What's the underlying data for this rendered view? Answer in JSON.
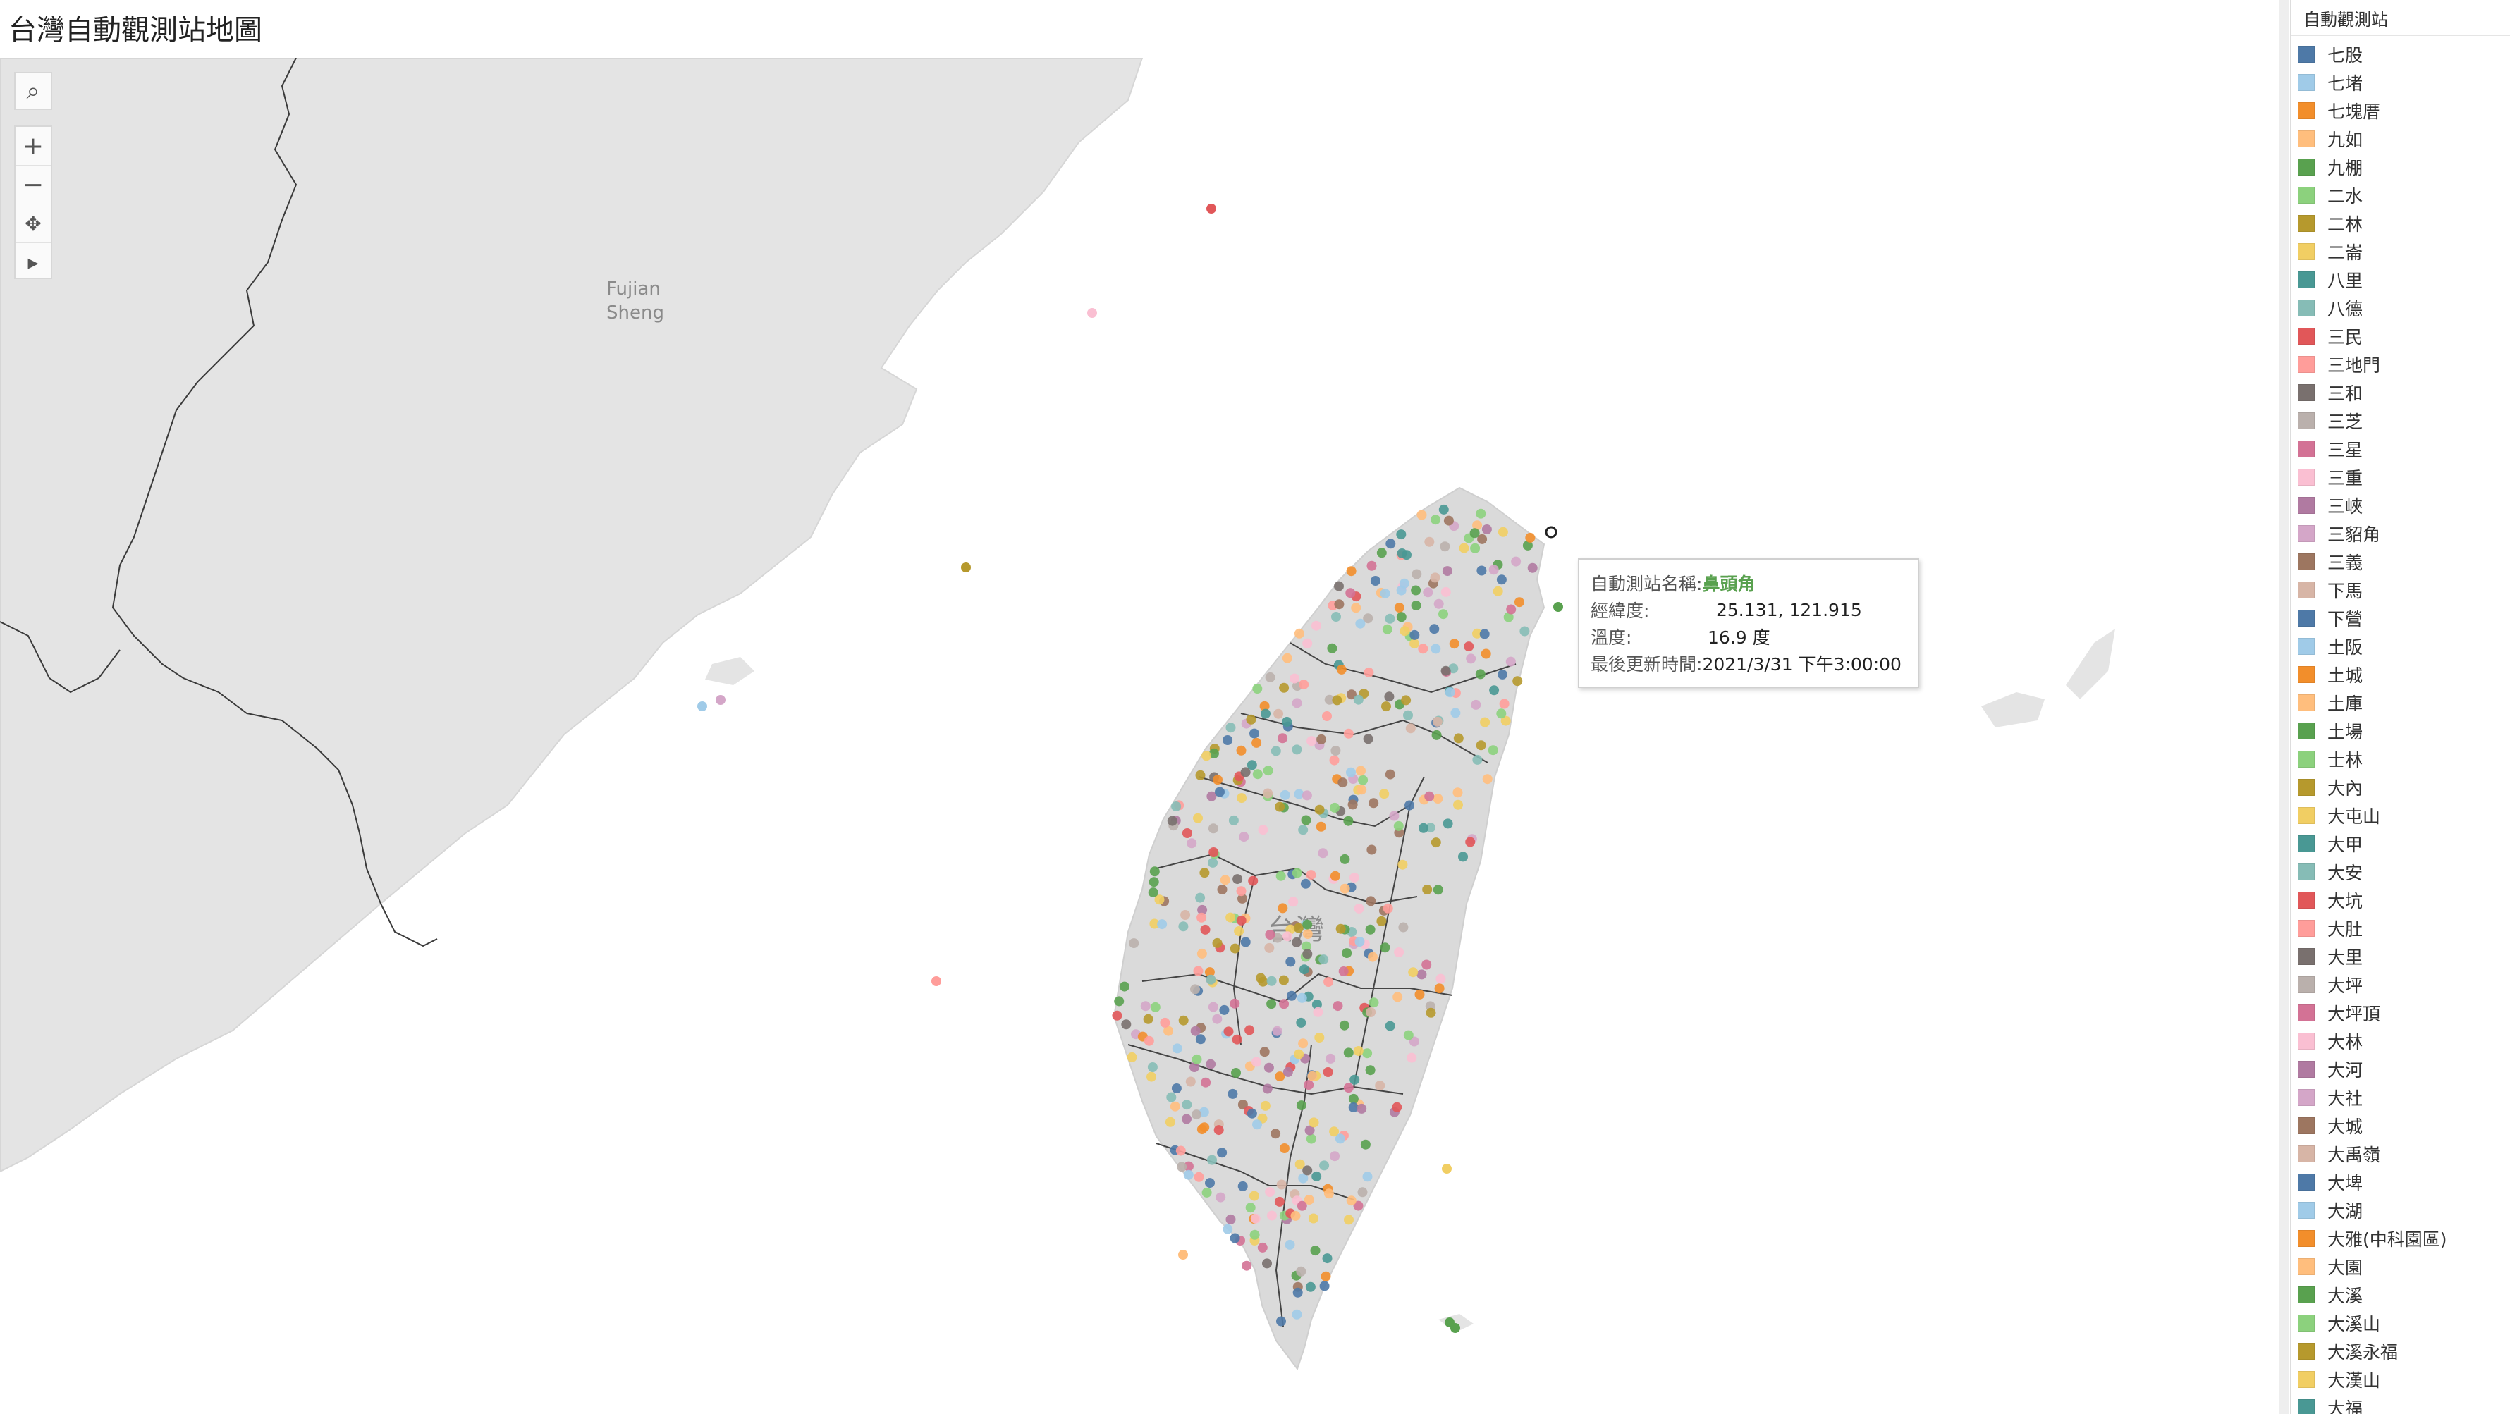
{
  "title": "台灣自動觀測站地圖",
  "map": {
    "region_labels": {
      "fujian_line1": "Fujian",
      "fujian_line2": "Sheng",
      "taiwan": "台灣"
    },
    "colors": {
      "land": "#e4e4e4",
      "sea": "#ffffff",
      "border": "#3a3a3a",
      "taiwan_land": "#dadada"
    }
  },
  "toolbar": {
    "search_icon": "⌕",
    "zoom_in": "+",
    "zoom_out": "−",
    "pan_icon": "✥",
    "play_icon": "▸"
  },
  "tooltip": {
    "name_label": "自動測站名稱:",
    "name_value": "鼻頭角",
    "coord_label": "經緯度:",
    "coord_value": "25.131,  121.915",
    "temp_label": "溫度:",
    "temp_value": "16.9 度",
    "time_label": "最後更新時間:",
    "time_value": "2021/3/31 下午3:00:00"
  },
  "legend": {
    "title": "自動觀測站",
    "items": [
      {
        "label": "七股",
        "color": "#4e79a7"
      },
      {
        "label": "七堵",
        "color": "#a0cbe8"
      },
      {
        "label": "七塊厝",
        "color": "#f28e2b"
      },
      {
        "label": "九如",
        "color": "#ffbe7d"
      },
      {
        "label": "九棚",
        "color": "#59a14f"
      },
      {
        "label": "二水",
        "color": "#8cd17d"
      },
      {
        "label": "二林",
        "color": "#b6992d"
      },
      {
        "label": "二崙",
        "color": "#f1ce63"
      },
      {
        "label": "八里",
        "color": "#499894"
      },
      {
        "label": "八德",
        "color": "#86bcb6"
      },
      {
        "label": "三民",
        "color": "#e15759"
      },
      {
        "label": "三地門",
        "color": "#ff9d9a"
      },
      {
        "label": "三和",
        "color": "#79706e"
      },
      {
        "label": "三芝",
        "color": "#bab0ac"
      },
      {
        "label": "三星",
        "color": "#d37295"
      },
      {
        "label": "三重",
        "color": "#fabfd2"
      },
      {
        "label": "三峽",
        "color": "#b07aa1"
      },
      {
        "label": "三貂角",
        "color": "#d4a6c8"
      },
      {
        "label": "三義",
        "color": "#9d7660"
      },
      {
        "label": "下馬",
        "color": "#d7b5a6"
      },
      {
        "label": "下營",
        "color": "#4e79a7"
      },
      {
        "label": "土阪",
        "color": "#a0cbe8"
      },
      {
        "label": "土城",
        "color": "#f28e2b"
      },
      {
        "label": "土庫",
        "color": "#ffbe7d"
      },
      {
        "label": "土場",
        "color": "#59a14f"
      },
      {
        "label": "士林",
        "color": "#8cd17d"
      },
      {
        "label": "大內",
        "color": "#b6992d"
      },
      {
        "label": "大屯山",
        "color": "#f1ce63"
      },
      {
        "label": "大甲",
        "color": "#499894"
      },
      {
        "label": "大安",
        "color": "#86bcb6"
      },
      {
        "label": "大坑",
        "color": "#e15759"
      },
      {
        "label": "大肚",
        "color": "#ff9d9a"
      },
      {
        "label": "大里",
        "color": "#79706e"
      },
      {
        "label": "大坪",
        "color": "#bab0ac"
      },
      {
        "label": "大坪頂",
        "color": "#d37295"
      },
      {
        "label": "大林",
        "color": "#fabfd2"
      },
      {
        "label": "大河",
        "color": "#b07aa1"
      },
      {
        "label": "大社",
        "color": "#d4a6c8"
      },
      {
        "label": "大城",
        "color": "#9d7660"
      },
      {
        "label": "大禹嶺",
        "color": "#d7b5a6"
      },
      {
        "label": "大埤",
        "color": "#4e79a7"
      },
      {
        "label": "大湖",
        "color": "#a0cbe8"
      },
      {
        "label": "大雅(中科園區)",
        "color": "#f28e2b"
      },
      {
        "label": "大園",
        "color": "#ffbe7d"
      },
      {
        "label": "大溪",
        "color": "#59a14f"
      },
      {
        "label": "大溪山",
        "color": "#8cd17d"
      },
      {
        "label": "大溪永福",
        "color": "#b6992d"
      },
      {
        "label": "大漢山",
        "color": "#f1ce63"
      },
      {
        "label": "大福",
        "color": "#499894"
      }
    ]
  }
}
